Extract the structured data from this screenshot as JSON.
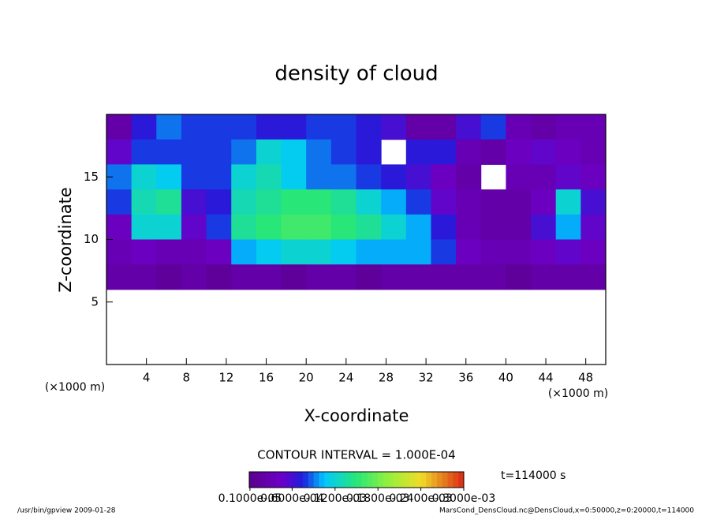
{
  "chart_data": {
    "type": "heatmap",
    "title": "density of cloud",
    "xlabel": "X-coordinate",
    "ylabel": "Z-coordinate",
    "xunit": "(×1000 m)",
    "yunit": "(×1000 m)",
    "xlim": [
      0,
      50
    ],
    "ylim": [
      0,
      20
    ],
    "xticks": [
      4,
      8,
      12,
      16,
      20,
      24,
      28,
      32,
      36,
      40,
      44,
      48
    ],
    "yticks": [
      5,
      10,
      15
    ],
    "x": [
      1.25,
      3.75,
      6.25,
      8.75,
      11.25,
      13.75,
      16.25,
      18.75,
      21.25,
      23.75,
      26.25,
      28.75,
      31.25,
      33.75,
      36.25,
      38.75,
      41.25,
      43.75,
      46.25,
      48.75
    ],
    "y": [
      19,
      17,
      15,
      13,
      11,
      9,
      7,
      5,
      3,
      1
    ],
    "z": [
      [
        2e-05,
        7e-05,
        9e-05,
        8e-05,
        8e-05,
        8e-05,
        7e-05,
        7e-05,
        8e-05,
        8e-05,
        7e-05,
        6e-05,
        2e-05,
        2e-05,
        6e-05,
        8e-05,
        3e-05,
        2e-05,
        3e-05,
        3e-05
      ],
      [
        5e-05,
        8e-05,
        8e-05,
        8e-05,
        8e-05,
        9e-05,
        0.00012,
        0.00011,
        9e-05,
        8e-05,
        7e-05,
        null,
        7e-05,
        7e-05,
        3e-05,
        2e-05,
        4e-05,
        5e-05,
        4e-05,
        3e-05
      ],
      [
        9e-05,
        0.00012,
        0.00011,
        8e-05,
        8e-05,
        0.00012,
        0.00013,
        0.00011,
        9e-05,
        9e-05,
        8e-05,
        7e-05,
        6e-05,
        4e-05,
        2e-05,
        null,
        3e-05,
        3e-05,
        5e-05,
        4e-05
      ],
      [
        8e-05,
        0.00013,
        0.00014,
        6e-05,
        7e-05,
        0.00013,
        0.00014,
        0.00015,
        0.00015,
        0.00014,
        0.00012,
        0.0001,
        8e-05,
        5e-05,
        3e-05,
        2e-05,
        2e-05,
        4e-05,
        0.00012,
        6e-05
      ],
      [
        4e-05,
        0.00012,
        0.00012,
        5e-05,
        8e-05,
        0.00014,
        0.00015,
        0.00016,
        0.00016,
        0.00015,
        0.00014,
        0.00012,
        0.0001,
        7e-05,
        3e-05,
        2e-05,
        2e-05,
        6e-05,
        0.0001,
        5e-05
      ],
      [
        3e-05,
        4e-05,
        3e-05,
        3e-05,
        4e-05,
        0.0001,
        0.00011,
        0.00012,
        0.00012,
        0.00011,
        0.0001,
        0.0001,
        0.0001,
        8e-05,
        4e-05,
        3e-05,
        3e-05,
        4e-05,
        5e-05,
        4e-05
      ],
      [
        2e-05,
        2e-05,
        1e-05,
        2e-05,
        1e-05,
        2e-05,
        2e-05,
        1e-05,
        2e-05,
        2e-05,
        1e-05,
        2e-05,
        2e-05,
        2e-05,
        2e-05,
        2e-05,
        1e-05,
        2e-05,
        2e-05,
        2e-05
      ],
      [
        null,
        null,
        null,
        null,
        null,
        null,
        null,
        null,
        null,
        null,
        null,
        null,
        null,
        null,
        null,
        null,
        null,
        null,
        null,
        null
      ],
      [
        null,
        null,
        null,
        null,
        null,
        null,
        null,
        null,
        null,
        null,
        null,
        null,
        null,
        null,
        null,
        null,
        null,
        null,
        null,
        null
      ],
      [
        null,
        null,
        null,
        null,
        null,
        null,
        null,
        null,
        null,
        null,
        null,
        null,
        null,
        null,
        null,
        null,
        null,
        null,
        null,
        null
      ]
    ],
    "contour_label": "CONTOUR INTERVAL = 1.000E-04",
    "time_label": "t=114000 s",
    "colorbar_lim": [
      0,
      0.0003
    ],
    "colorbar_ticks": [
      {
        "value": 1e-06,
        "label": "0.1000e-05"
      },
      {
        "value": 6e-05,
        "label": "0.6000e-04"
      },
      {
        "value": 0.00012,
        "label": "0.1200e-03"
      },
      {
        "value": 0.00018,
        "label": "0.1800e-03"
      },
      {
        "value": 0.00024,
        "label": "0.2400e-03"
      },
      {
        "value": 0.0003,
        "label": "0.3000e-03"
      }
    ],
    "footer_left": "/usr/bin/gpview  2009-01-28",
    "footer_right": "MarsCond_DensCloud.nc@DensCloud,x=0:50000,z=0:20000,t=114000"
  }
}
